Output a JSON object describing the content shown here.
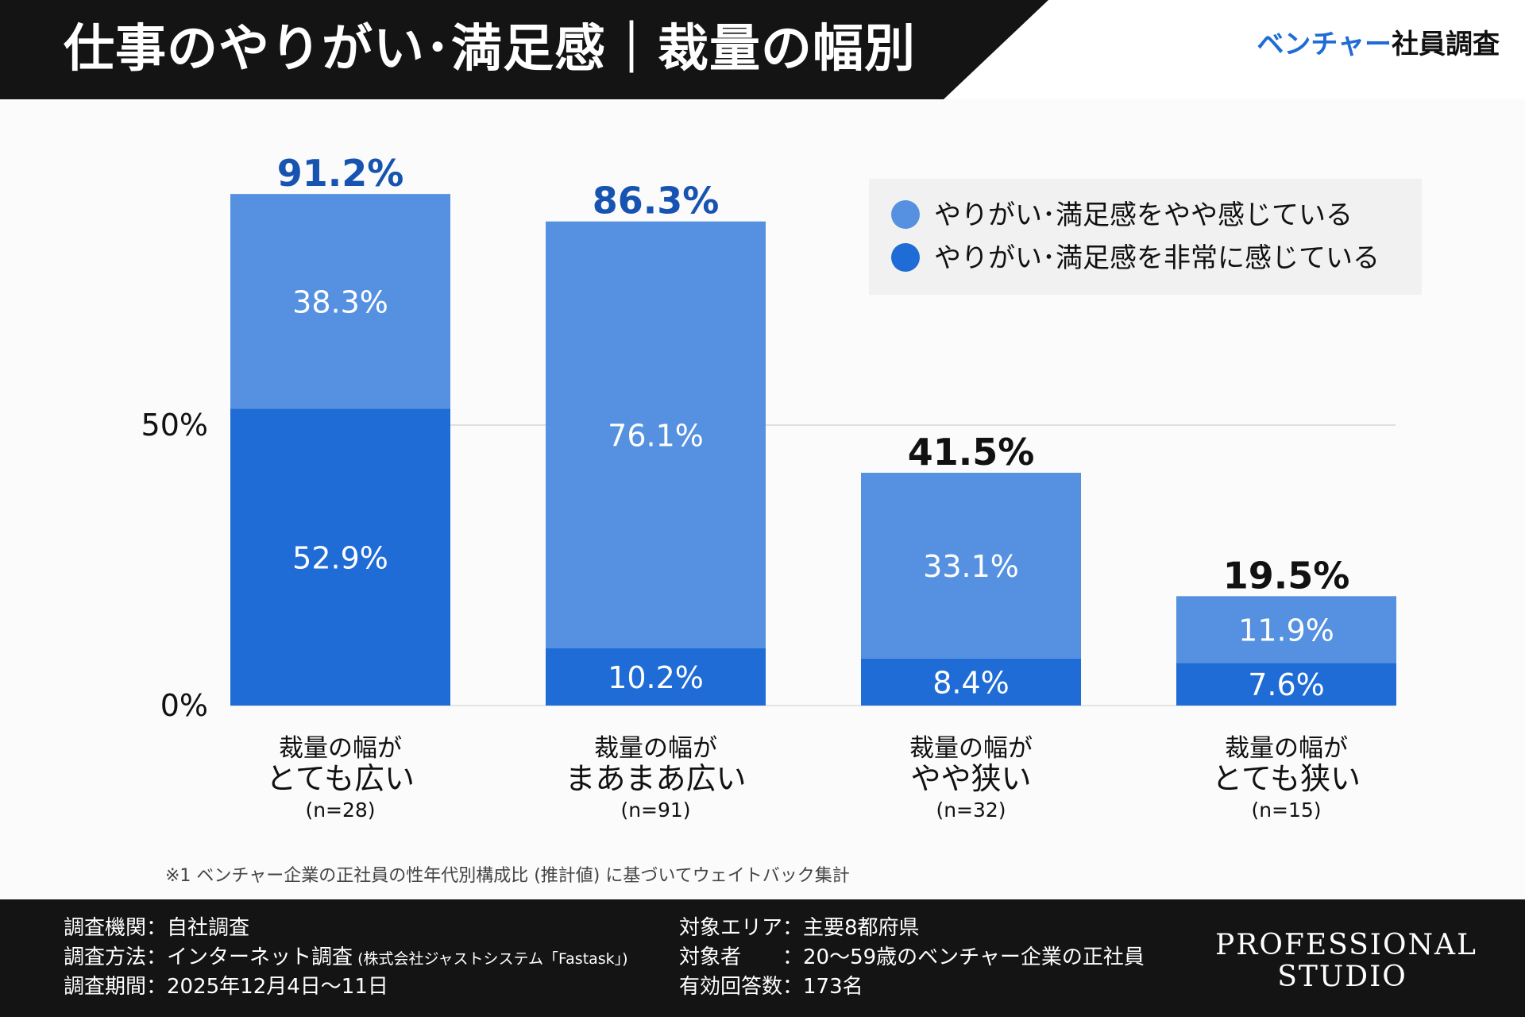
{
  "header": {
    "title": "仕事のやりがい･満足感｜裁量の幅別",
    "brand_accent": "ベンチャー",
    "brand_rest": "社員調査"
  },
  "colors": {
    "light_blue": "#5591e0",
    "dark_blue": "#1f6cd6",
    "highlight_total": "#1753b0",
    "normal_total": "#111111"
  },
  "legend": {
    "items": [
      {
        "label": "やりがい･満足感をやや感じている",
        "color": "#5591e0"
      },
      {
        "label": "やりがい･満足感を非常に感じている",
        "color": "#1f6cd6"
      }
    ]
  },
  "chart_data": {
    "type": "bar",
    "stacked": true,
    "ylim": [
      0,
      100
    ],
    "yticks": [
      {
        "value": 0,
        "label": "0%"
      },
      {
        "value": 50,
        "label": "50%"
      }
    ],
    "categories": [
      {
        "line1": "裁量の幅が",
        "line2": "とても広い",
        "n": "(n=28)"
      },
      {
        "line1": "裁量の幅が",
        "line2": "まあまあ広い",
        "n": "(n=91)"
      },
      {
        "line1": "裁量の幅が",
        "line2": "やや狭い",
        "n": "(n=32)"
      },
      {
        "line1": "裁量の幅が",
        "line2": "とても狭い",
        "n": "(n=15)"
      }
    ],
    "series": [
      {
        "name": "やりがい･満足感を非常に感じている",
        "values": [
          52.9,
          10.2,
          8.4,
          7.6
        ],
        "labels": [
          "52.9%",
          "10.2%",
          "8.4%",
          "7.6%"
        ]
      },
      {
        "name": "やりがい･満足感をやや感じている",
        "values": [
          38.3,
          76.1,
          33.1,
          11.9
        ],
        "labels": [
          "38.3%",
          "76.1%",
          "33.1%",
          "11.9%"
        ]
      }
    ],
    "totals": [
      91.2,
      86.3,
      41.5,
      19.5
    ],
    "total_labels": [
      "91.2%",
      "86.3%",
      "41.5%",
      "19.5%"
    ],
    "total_highlight": [
      true,
      true,
      false,
      false
    ],
    "legend_position": "top-right"
  },
  "footnote": "※1 ベンチャー企業の正社員の性年代別構成比 (推計値) に基づいてウェイトバック集計",
  "footer": {
    "left": [
      {
        "key": "調査機関：",
        "value": "自社調査"
      },
      {
        "key": "調査方法：",
        "value": "インターネット調査",
        "note": " (株式会社ジャストシステム「Fastask」)"
      },
      {
        "key": "調査期間：",
        "value": "2025年12月4日〜11日"
      }
    ],
    "right": [
      {
        "key": "対象エリア：",
        "value": "主要8都府県"
      },
      {
        "key": "対象者　　：",
        "value": "20〜59歳のベンチャー企業の正社員"
      },
      {
        "key": "有効回答数：",
        "value": "173名"
      }
    ],
    "logo_line1": "PROFESSIONAL",
    "logo_line2": "STUDIO"
  }
}
